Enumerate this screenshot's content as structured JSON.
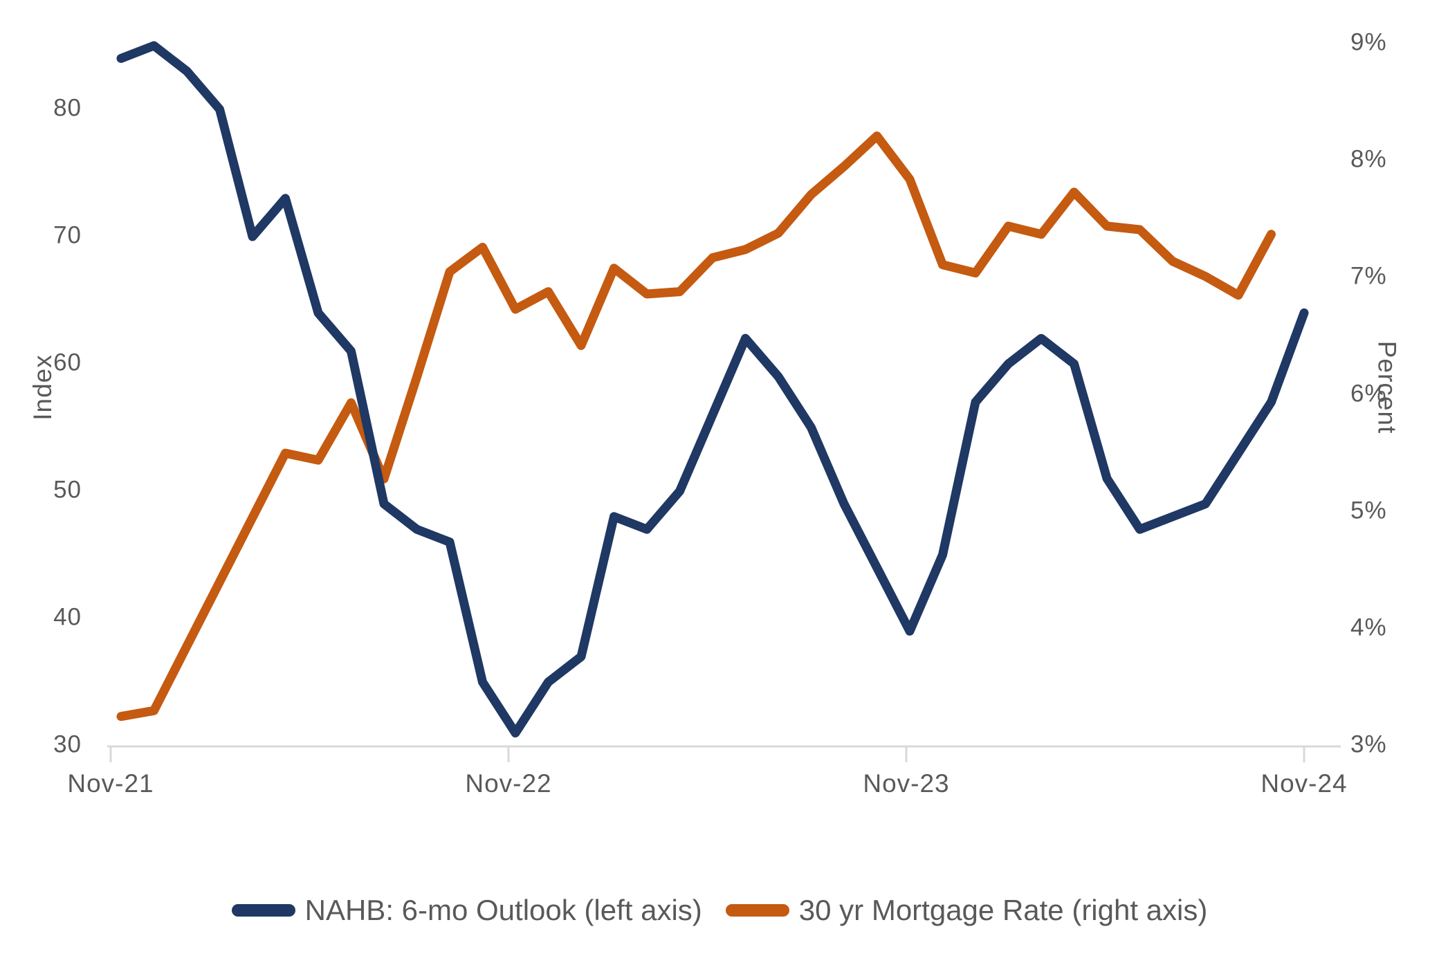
{
  "chart_data": {
    "type": "line",
    "title": "",
    "grid": false,
    "x_axis": {
      "tick_labels": [
        "Nov-21",
        "Nov-22",
        "Nov-23",
        "Nov-24"
      ],
      "months_per_tick": 12,
      "total_months": 36
    },
    "left_axis": {
      "label": "Index",
      "ticks": [
        30,
        40,
        50,
        60,
        70,
        80
      ],
      "range": [
        30,
        88
      ]
    },
    "right_axis": {
      "label": "Percent",
      "ticks": [
        "3%",
        "4%",
        "5%",
        "6%",
        "7%",
        "8%",
        "9%"
      ],
      "range": [
        3,
        9
      ]
    },
    "series": [
      {
        "name": "NAHB: 6-mo Outlook (left axis)",
        "axis": "left",
        "color": "#1f3864",
        "start_month": "Nov-21",
        "values": [
          84,
          85,
          83,
          80,
          70,
          73,
          64,
          61,
          49,
          47,
          46,
          35,
          31,
          35,
          37,
          48,
          47,
          50,
          56,
          62,
          59,
          55,
          49,
          44,
          39,
          45,
          57,
          60,
          62,
          60,
          51,
          47,
          48,
          49,
          53,
          57,
          64
        ]
      },
      {
        "name": "30 yr Mortgage Rate (right axis)",
        "axis": "right",
        "color": "#c55a11",
        "start_month": "Nov-21",
        "values": [
          3.25,
          3.3,
          3.85,
          4.4,
          4.95,
          5.5,
          5.44,
          5.93,
          5.28,
          6.15,
          7.05,
          7.26,
          6.73,
          6.88,
          6.42,
          7.08,
          6.86,
          6.88,
          7.17,
          7.24,
          7.38,
          7.71,
          7.95,
          8.21,
          7.84,
          7.11,
          7.04,
          7.44,
          7.37,
          7.73,
          7.44,
          7.41,
          7.14,
          7.01,
          6.85,
          7.37
        ]
      }
    ],
    "legend": {
      "position": "bottom",
      "entries": [
        "NAHB: 6-mo Outlook (left axis)",
        "30 yr Mortgage Rate (right axis)"
      ]
    }
  },
  "colors": {
    "axis_line": "#d9d9d9",
    "tick_text": "#595959",
    "legend_text": "#595959",
    "background": "#ffffff",
    "nahb_line": "#1f3864",
    "mortgage_line": "#c55a11"
  }
}
